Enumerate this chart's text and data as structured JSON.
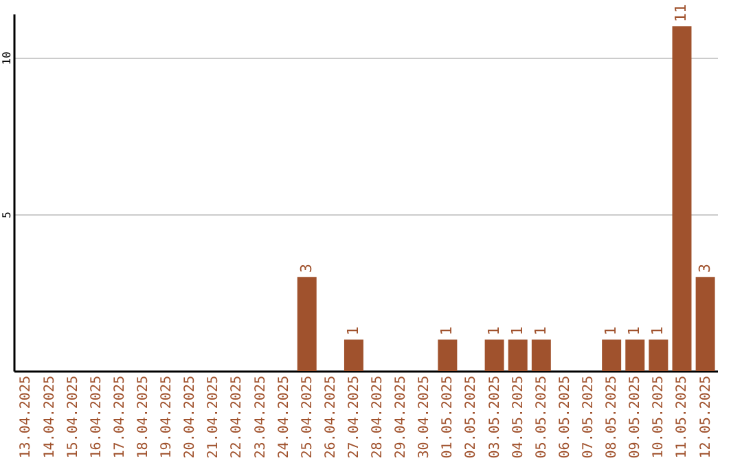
{
  "chart_data": {
    "type": "bar",
    "categories": [
      "13.04.2025",
      "14.04.2025",
      "15.04.2025",
      "16.04.2025",
      "17.04.2025",
      "18.04.2025",
      "19.04.2025",
      "20.04.2025",
      "21.04.2025",
      "22.04.2025",
      "23.04.2025",
      "24.04.2025",
      "25.04.2025",
      "26.04.2025",
      "27.04.2025",
      "28.04.2025",
      "29.04.2025",
      "30.04.2025",
      "01.05.2025",
      "02.05.2025",
      "03.05.2025",
      "04.05.2025",
      "05.05.2025",
      "06.05.2025",
      "07.05.2025",
      "08.05.2025",
      "09.05.2025",
      "10.05.2025",
      "11.05.2025",
      "12.05.2025"
    ],
    "series": [
      {
        "color": "#a0522d",
        "values": [
          0,
          0,
          0,
          0,
          0,
          0,
          0,
          0,
          0,
          0,
          0,
          0,
          3,
          0,
          1,
          0,
          0,
          0,
          1,
          0,
          1,
          1,
          1,
          0,
          0,
          1,
          1,
          1,
          11,
          3
        ],
        "value_labels": [
          null,
          null,
          null,
          null,
          null,
          null,
          null,
          null,
          null,
          null,
          null,
          null,
          "3",
          null,
          "1",
          null,
          null,
          null,
          "1",
          null,
          "1",
          "1",
          "1",
          null,
          null,
          "1",
          "1",
          "1",
          "11",
          "3"
        ]
      }
    ],
    "ylim": [
      0,
      11.4
    ],
    "yticks": [
      5,
      10
    ],
    "grid": "y"
  }
}
